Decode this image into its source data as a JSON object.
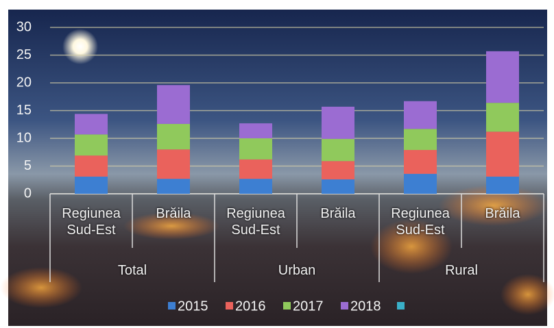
{
  "chart_data": {
    "type": "stacked_bar",
    "groups": [
      {
        "name": "Total",
        "categories": [
          "Regiunea Sud-Est",
          "Brăila"
        ]
      },
      {
        "name": "Urban",
        "categories": [
          "Regiunea Sud-Est",
          "Brăila"
        ]
      },
      {
        "name": "Rural",
        "categories": [
          "Regiunea Sud-Est",
          "Brăila"
        ]
      }
    ],
    "series": [
      {
        "name": "2015",
        "color": "#3d7fd2",
        "values": [
          3.1,
          2.7,
          2.7,
          2.6,
          3.6,
          3.1
        ]
      },
      {
        "name": "2016",
        "color": "#ea625c",
        "values": [
          3.8,
          5.3,
          3.5,
          3.3,
          4.3,
          8.1
        ]
      },
      {
        "name": "2017",
        "color": "#90c95c",
        "values": [
          3.8,
          4.6,
          3.8,
          4.0,
          3.8,
          5.2
        ]
      },
      {
        "name": "2018",
        "color": "#9b6cd2",
        "values": [
          3.7,
          7.0,
          2.7,
          5.8,
          5.0,
          9.3
        ]
      }
    ],
    "ylim": [
      0,
      30
    ],
    "yticks": [
      0,
      5,
      10,
      15,
      20,
      25,
      30
    ],
    "grid": true
  }
}
